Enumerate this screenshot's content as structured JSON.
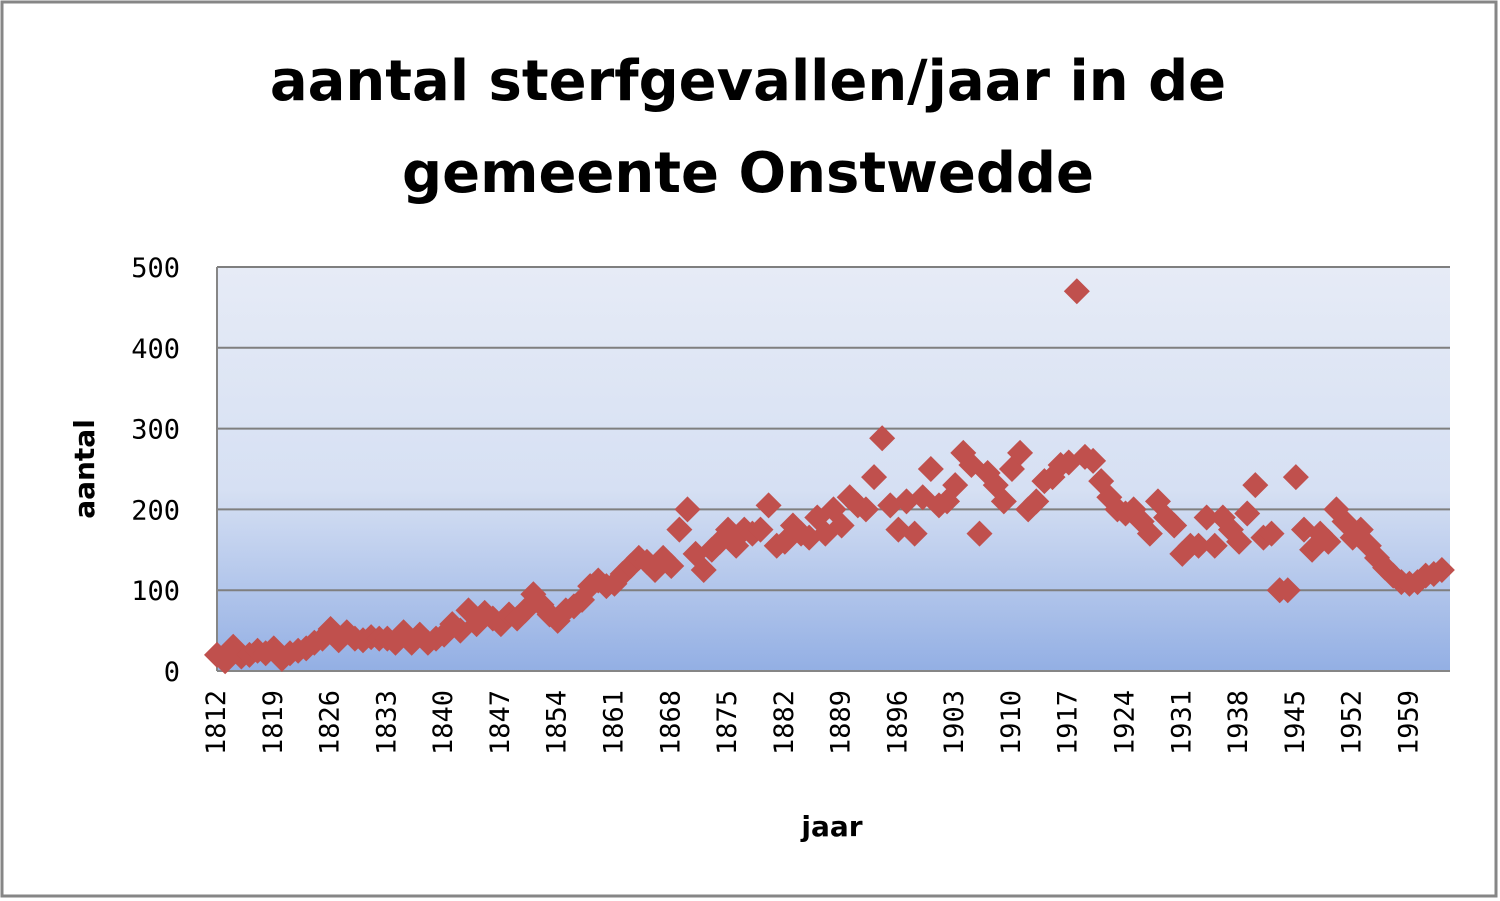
{
  "chart_data": {
    "type": "scatter",
    "title_lines": [
      "aantal sterfgevallen/jaar in de",
      "gemeente Onstwedde"
    ],
    "xlabel": "jaar",
    "ylabel": "aantal",
    "ylim": [
      0,
      500
    ],
    "yticks": [
      0,
      100,
      200,
      300,
      400,
      500
    ],
    "xlim": [
      1812,
      1964
    ],
    "xticks": [
      1812,
      1819,
      1826,
      1833,
      1840,
      1847,
      1854,
      1861,
      1868,
      1875,
      1882,
      1889,
      1896,
      1903,
      1910,
      1917,
      1924,
      1931,
      1938,
      1945,
      1952,
      1959
    ],
    "grid": true,
    "legend": "none",
    "colors": {
      "marker": "#c0504d",
      "plot_bg_top": "#e6ebf6",
      "plot_bg_bottom": "#93afe4",
      "gridline": "#7f7f7f",
      "frame": "#868686"
    },
    "series": [
      {
        "values": [
          [
            1812,
            20
          ],
          [
            1813,
            12
          ],
          [
            1814,
            30
          ],
          [
            1815,
            18
          ],
          [
            1816,
            20
          ],
          [
            1817,
            25
          ],
          [
            1818,
            22
          ],
          [
            1819,
            28
          ],
          [
            1820,
            15
          ],
          [
            1821,
            22
          ],
          [
            1822,
            25
          ],
          [
            1823,
            28
          ],
          [
            1824,
            35
          ],
          [
            1825,
            40
          ],
          [
            1826,
            52
          ],
          [
            1827,
            38
          ],
          [
            1828,
            48
          ],
          [
            1829,
            40
          ],
          [
            1830,
            38
          ],
          [
            1831,
            42
          ],
          [
            1832,
            40
          ],
          [
            1833,
            40
          ],
          [
            1834,
            35
          ],
          [
            1835,
            48
          ],
          [
            1836,
            35
          ],
          [
            1837,
            45
          ],
          [
            1838,
            35
          ],
          [
            1839,
            40
          ],
          [
            1840,
            45
          ],
          [
            1841,
            58
          ],
          [
            1842,
            50
          ],
          [
            1843,
            75
          ],
          [
            1844,
            58
          ],
          [
            1845,
            72
          ],
          [
            1846,
            65
          ],
          [
            1847,
            58
          ],
          [
            1848,
            70
          ],
          [
            1849,
            65
          ],
          [
            1850,
            75
          ],
          [
            1851,
            95
          ],
          [
            1852,
            82
          ],
          [
            1853,
            70
          ],
          [
            1854,
            62
          ],
          [
            1855,
            75
          ],
          [
            1856,
            80
          ],
          [
            1857,
            88
          ],
          [
            1858,
            105
          ],
          [
            1859,
            112
          ],
          [
            1860,
            105
          ],
          [
            1861,
            108
          ],
          [
            1862,
            120
          ],
          [
            1863,
            130
          ],
          [
            1864,
            140
          ],
          [
            1865,
            135
          ],
          [
            1866,
            125
          ],
          [
            1867,
            140
          ],
          [
            1868,
            130
          ],
          [
            1869,
            175
          ],
          [
            1870,
            200
          ],
          [
            1871,
            145
          ],
          [
            1872,
            125
          ],
          [
            1873,
            150
          ],
          [
            1874,
            160
          ],
          [
            1875,
            175
          ],
          [
            1876,
            155
          ],
          [
            1877,
            175
          ],
          [
            1878,
            170
          ],
          [
            1879,
            175
          ],
          [
            1880,
            205
          ],
          [
            1881,
            155
          ],
          [
            1882,
            160
          ],
          [
            1883,
            180
          ],
          [
            1884,
            170
          ],
          [
            1885,
            165
          ],
          [
            1886,
            190
          ],
          [
            1887,
            170
          ],
          [
            1888,
            200
          ],
          [
            1889,
            180
          ],
          [
            1890,
            215
          ],
          [
            1891,
            205
          ],
          [
            1892,
            200
          ],
          [
            1893,
            240
          ],
          [
            1894,
            288
          ],
          [
            1895,
            205
          ],
          [
            1896,
            175
          ],
          [
            1897,
            210
          ],
          [
            1898,
            170
          ],
          [
            1899,
            215
          ],
          [
            1900,
            250
          ],
          [
            1901,
            205
          ],
          [
            1902,
            210
          ],
          [
            1903,
            230
          ],
          [
            1904,
            270
          ],
          [
            1905,
            255
          ],
          [
            1906,
            170
          ],
          [
            1907,
            245
          ],
          [
            1908,
            230
          ],
          [
            1909,
            210
          ],
          [
            1910,
            250
          ],
          [
            1911,
            270
          ],
          [
            1912,
            200
          ],
          [
            1913,
            210
          ],
          [
            1914,
            235
          ],
          [
            1915,
            240
          ],
          [
            1916,
            255
          ],
          [
            1917,
            258
          ],
          [
            1918,
            470
          ],
          [
            1919,
            265
          ],
          [
            1920,
            260
          ],
          [
            1921,
            235
          ],
          [
            1922,
            215
          ],
          [
            1923,
            200
          ],
          [
            1924,
            195
          ],
          [
            1925,
            200
          ],
          [
            1926,
            185
          ],
          [
            1927,
            170
          ],
          [
            1928,
            210
          ],
          [
            1929,
            190
          ],
          [
            1930,
            180
          ],
          [
            1931,
            145
          ],
          [
            1932,
            155
          ],
          [
            1933,
            155
          ],
          [
            1934,
            190
          ],
          [
            1935,
            155
          ],
          [
            1936,
            190
          ],
          [
            1937,
            175
          ],
          [
            1938,
            160
          ],
          [
            1939,
            195
          ],
          [
            1940,
            230
          ],
          [
            1941,
            165
          ],
          [
            1942,
            170
          ],
          [
            1943,
            100
          ],
          [
            1944,
            100
          ],
          [
            1945,
            240
          ],
          [
            1946,
            175
          ],
          [
            1947,
            150
          ],
          [
            1948,
            170
          ],
          [
            1949,
            160
          ],
          [
            1950,
            200
          ],
          [
            1951,
            185
          ],
          [
            1952,
            165
          ],
          [
            1953,
            175
          ],
          [
            1954,
            155
          ],
          [
            1955,
            140
          ],
          [
            1956,
            128
          ],
          [
            1957,
            118
          ],
          [
            1958,
            110
          ],
          [
            1959,
            108
          ],
          [
            1960,
            110
          ],
          [
            1961,
            118
          ],
          [
            1962,
            120
          ],
          [
            1963,
            125
          ]
        ]
      }
    ]
  }
}
